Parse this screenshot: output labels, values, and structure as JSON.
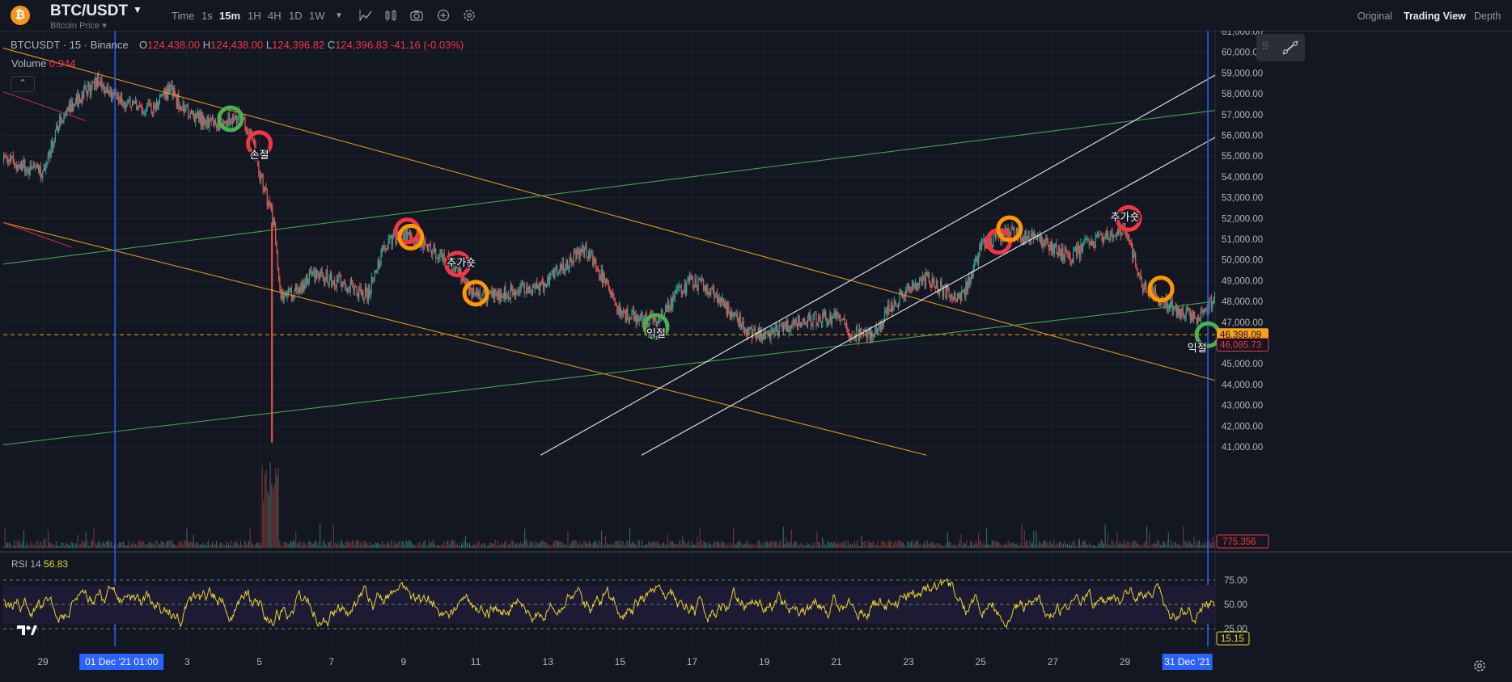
{
  "header": {
    "logo_icon": "bitcoin-icon",
    "logo_text": "₿",
    "symbol": "BTC/USDT",
    "subtitle": "Bitcoin Price",
    "timeframes": [
      "Time",
      "1s",
      "15m",
      "1H",
      "4H",
      "1D",
      "1W"
    ],
    "active_timeframe": "15m",
    "tools": [
      "indicator-icon",
      "compare-icon",
      "camera-icon",
      "add-icon",
      "settings-icon"
    ],
    "view_tabs": [
      "Original",
      "Trading View",
      "Depth"
    ],
    "active_view": "Trading View"
  },
  "legend": {
    "symbol_line": "BTCUSDT · 15 · Binance",
    "o_label": "O",
    "o": "124,438.00",
    "h_label": "H",
    "h": "124,438.00",
    "l_label": "L",
    "l": "124,396.82",
    "c_label": "C",
    "c": "124,396.83",
    "change": "-41.16 (-0.03%)",
    "volume_label": "Volume",
    "volume_value": "0.944",
    "rsi_label": "RSI 14",
    "rsi_value": "56.83"
  },
  "colors": {
    "background": "#131722",
    "grid": "#1e222d",
    "up": "#26a69a",
    "down": "#ef5350",
    "rsi": "#e8d033",
    "trend_orange": "#f7a21b",
    "trend_green": "#4caf50",
    "channel_white": "#ffffff",
    "marker_red": "#f23645",
    "marker_orange": "#ff9800",
    "marker_green": "#4caf50",
    "accent_blue": "#2962ff"
  },
  "chart_data": [
    {
      "type": "candlestick",
      "title": "BTCUSDT · 15 · Binance",
      "x_ticks": [
        "29",
        "01 Dec '21  01:00",
        "3",
        "5",
        "7",
        "9",
        "11",
        "13",
        "15",
        "17",
        "19",
        "21",
        "23",
        "25",
        "27",
        "29",
        "31 Dec '21"
      ],
      "x_tick_days": [
        -2,
        0,
        2,
        4,
        6,
        8,
        10,
        12,
        14,
        16,
        18,
        20,
        22,
        24,
        26,
        28,
        30
      ],
      "y_ticks": [
        61000,
        60000,
        59000,
        58000,
        57000,
        56000,
        55000,
        54000,
        53000,
        52000,
        51000,
        50000,
        49000,
        48000,
        47000,
        46000,
        45000,
        44000,
        43000,
        42000,
        41000
      ],
      "y_tick_labels": [
        "61,000.00",
        "60,000.00",
        "59,000.00",
        "58,000.00",
        "57,000.00",
        "56,000.00",
        "55,000.00",
        "54,000.00",
        "53,000.00",
        "52,000.00",
        "51,000.00",
        "50,000.00",
        "49,000.00",
        "48,000.00",
        "47,000.00",
        "46,000.00",
        "45,000.00",
        "44,000.00",
        "43,000.00",
        "42,000.00",
        "41,000.00"
      ],
      "ylim": [
        40600,
        61100
      ],
      "xlim": [
        -3.1,
        30.5
      ],
      "series": [
        {
          "name": "BTCUSDT",
          "x": [
            -3,
            -2,
            -1.5,
            -1,
            -0.5,
            0,
            0.5,
            1,
            1.5,
            2,
            2.5,
            3,
            3.5,
            3.8,
            4,
            4.2,
            4.4,
            4.6,
            5,
            5.5,
            6,
            6.5,
            7,
            7.5,
            8,
            8.5,
            9,
            9.5,
            10,
            11,
            12,
            12.5,
            13,
            13.5,
            14,
            15,
            15.5,
            16,
            16.5,
            17,
            17.5,
            18,
            19,
            20,
            20.5,
            21,
            21.5,
            22,
            22.5,
            23,
            23.5,
            24,
            24.5,
            25,
            26,
            26.5,
            27,
            27.5,
            28,
            28.5,
            29,
            29.5,
            30,
            30.5
          ],
          "y": [
            54800,
            54200,
            56800,
            57800,
            58600,
            57800,
            57400,
            57200,
            58200,
            57100,
            56700,
            56600,
            56900,
            55800,
            54200,
            53100,
            51800,
            48200,
            48500,
            49400,
            49100,
            48700,
            48300,
            50800,
            51200,
            50800,
            50200,
            49600,
            48200,
            48400,
            48900,
            49800,
            50600,
            49200,
            47400,
            47000,
            48200,
            49000,
            48600,
            47600,
            46600,
            46300,
            47100,
            47200,
            46400,
            46400,
            47700,
            48700,
            49100,
            48500,
            48200,
            50600,
            51200,
            51300,
            50600,
            50100,
            50800,
            51200,
            51500,
            48800,
            48000,
            47500,
            47200,
            48100
          ]
        }
      ],
      "current_price_label": "46,398.09",
      "secondary_price_label": "46,085.73",
      "dashed_level": 46400,
      "annotations": [
        "손절",
        "추가숏",
        "익절",
        "추가숏",
        "익절"
      ]
    },
    {
      "type": "bar",
      "title": "Volume",
      "last_label": "775.356"
    },
    {
      "type": "line",
      "title": "RSI 14",
      "y_ticks": [
        75,
        50,
        25
      ],
      "y_tick_labels": [
        "75.00",
        "50.00",
        "25.00"
      ],
      "ylim": [
        0,
        100
      ],
      "band": [
        30,
        70
      ],
      "current_label": "15.15",
      "x_range_days": [
        -3.1,
        30.5
      ],
      "pattern_seed": 17
    }
  ]
}
